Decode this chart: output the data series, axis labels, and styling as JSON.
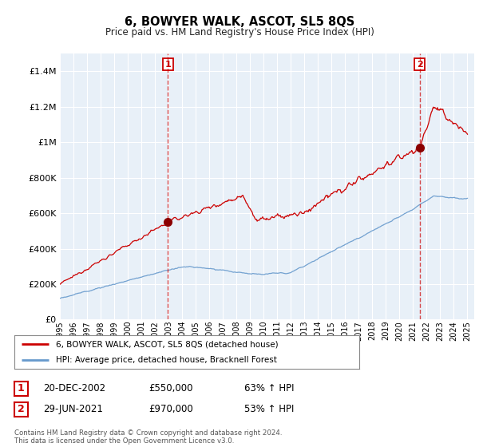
{
  "title": "6, BOWYER WALK, ASCOT, SL5 8QS",
  "subtitle": "Price paid vs. HM Land Registry's House Price Index (HPI)",
  "legend_line1": "6, BOWYER WALK, ASCOT, SL5 8QS (detached house)",
  "legend_line2": "HPI: Average price, detached house, Bracknell Forest",
  "sale1_label": "1",
  "sale1_date": "20-DEC-2002",
  "sale1_price": "£550,000",
  "sale1_hpi": "63% ↑ HPI",
  "sale2_label": "2",
  "sale2_date": "29-JUN-2021",
  "sale2_price": "£970,000",
  "sale2_hpi": "53% ↑ HPI",
  "footer": "Contains HM Land Registry data © Crown copyright and database right 2024.\nThis data is licensed under the Open Government Licence v3.0.",
  "red_color": "#cc0000",
  "blue_color": "#6699cc",
  "fill_color": "#ddeeff",
  "background": "#f0f4ff",
  "grid_color": "#cccccc",
  "ylim": [
    0,
    1500000
  ],
  "yticks": [
    0,
    200000,
    400000,
    600000,
    800000,
    1000000,
    1200000,
    1400000
  ],
  "ytick_labels": [
    "£0",
    "£200K",
    "£400K",
    "£600K",
    "£800K",
    "£1M",
    "£1.2M",
    "£1.4M"
  ],
  "sale1_year": 2002.96,
  "sale1_value": 550000,
  "sale2_year": 2021.49,
  "sale2_value": 970000,
  "xlim_start": 1995,
  "xlim_end": 2025.5
}
